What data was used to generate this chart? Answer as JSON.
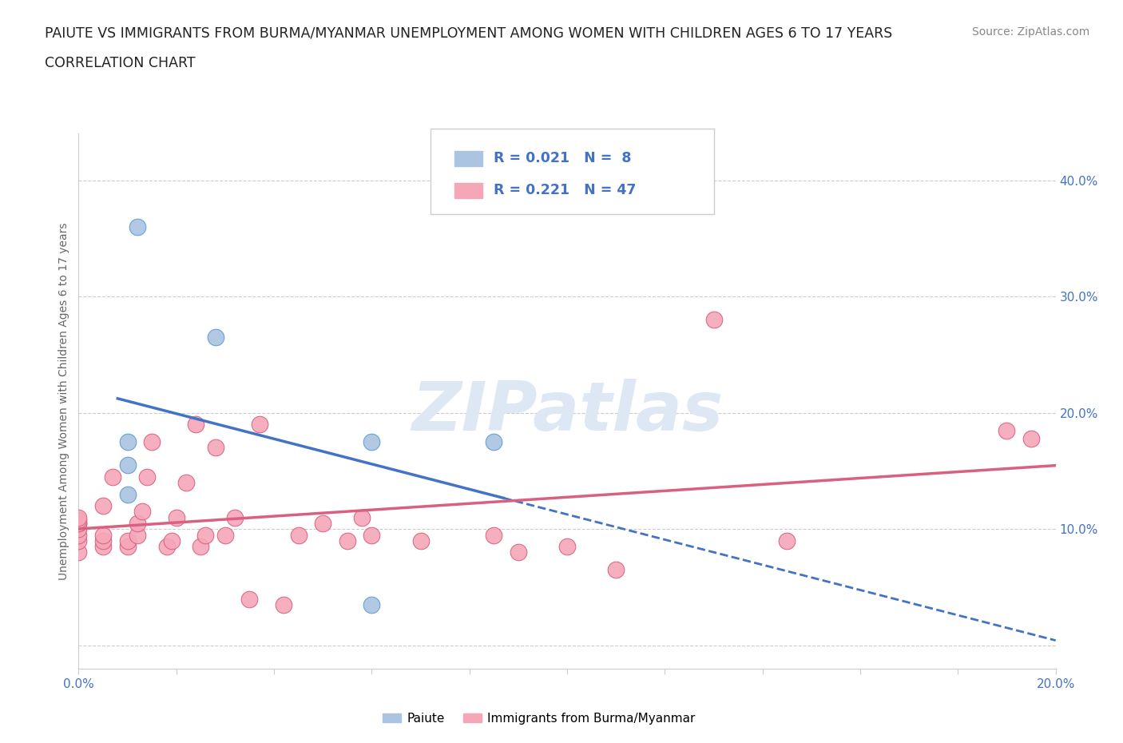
{
  "title_line1": "PAIUTE VS IMMIGRANTS FROM BURMA/MYANMAR UNEMPLOYMENT AMONG WOMEN WITH CHILDREN AGES 6 TO 17 YEARS",
  "title_line2": "CORRELATION CHART",
  "source": "Source: ZipAtlas.com",
  "ylabel": "Unemployment Among Women with Children Ages 6 to 17 years",
  "xlim": [
    0.0,
    0.2
  ],
  "ylim": [
    -0.02,
    0.44
  ],
  "yticks": [
    0.0,
    0.1,
    0.2,
    0.3,
    0.4
  ],
  "xticks": [
    0.0,
    0.02,
    0.04,
    0.06,
    0.08,
    0.1,
    0.12,
    0.14,
    0.16,
    0.18,
    0.2
  ],
  "paiute_color": "#aac4e2",
  "paiute_edge_color": "#5b9bd5",
  "burma_color": "#f5a7b8",
  "burma_edge_color": "#d96080",
  "paiute_R": 0.021,
  "paiute_N": 8,
  "burma_R": 0.221,
  "burma_N": 47,
  "legend_text_color": "#4472c4",
  "trend_color_paiute": "#4472c4",
  "trend_color_burma": "#d96080",
  "watermark": "ZIPatlas",
  "watermark_color": "#dde8f4",
  "paiute_x": [
    0.01,
    0.01,
    0.01,
    0.012,
    0.028,
    0.06,
    0.06,
    0.085
  ],
  "paiute_y": [
    0.155,
    0.175,
    0.13,
    0.36,
    0.265,
    0.175,
    0.035,
    0.175
  ],
  "burma_x": [
    0.0,
    0.0,
    0.0,
    0.0,
    0.0,
    0.0,
    0.0,
    0.0,
    0.005,
    0.005,
    0.005,
    0.005,
    0.007,
    0.01,
    0.01,
    0.012,
    0.012,
    0.013,
    0.014,
    0.015,
    0.018,
    0.019,
    0.02,
    0.022,
    0.024,
    0.025,
    0.026,
    0.028,
    0.03,
    0.032,
    0.035,
    0.037,
    0.042,
    0.045,
    0.05,
    0.055,
    0.058,
    0.06,
    0.07,
    0.085,
    0.09,
    0.1,
    0.11,
    0.13,
    0.145,
    0.19,
    0.195
  ],
  "burma_y": [
    0.08,
    0.09,
    0.095,
    0.1,
    0.105,
    0.105,
    0.108,
    0.11,
    0.085,
    0.09,
    0.095,
    0.12,
    0.145,
    0.085,
    0.09,
    0.095,
    0.105,
    0.115,
    0.145,
    0.175,
    0.085,
    0.09,
    0.11,
    0.14,
    0.19,
    0.085,
    0.095,
    0.17,
    0.095,
    0.11,
    0.04,
    0.19,
    0.035,
    0.095,
    0.105,
    0.09,
    0.11,
    0.095,
    0.09,
    0.095,
    0.08,
    0.085,
    0.065,
    0.28,
    0.09,
    0.185,
    0.178
  ]
}
